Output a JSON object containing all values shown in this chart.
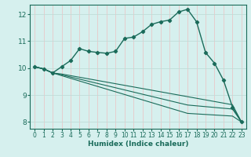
{
  "xlabel": "Humidex (Indice chaleur)",
  "bg_color": "#d6f0ee",
  "grid_color_h": "#c0dcd8",
  "grid_color_v": "#e8c8c8",
  "line_color": "#1a6b5a",
  "xlim": [
    -0.5,
    23.5
  ],
  "ylim": [
    7.75,
    12.35
  ],
  "xticks": [
    0,
    1,
    2,
    3,
    4,
    5,
    6,
    7,
    8,
    9,
    10,
    11,
    12,
    13,
    14,
    15,
    16,
    17,
    18,
    19,
    20,
    21,
    22,
    23
  ],
  "yticks": [
    8,
    9,
    10,
    11,
    12
  ],
  "curve1_x": [
    0,
    1,
    2,
    3,
    4,
    5,
    6,
    7,
    8,
    9,
    10,
    11,
    12,
    13,
    14,
    15,
    16,
    17,
    18,
    19,
    20,
    21,
    22,
    23
  ],
  "curve1_y": [
    10.05,
    9.97,
    9.82,
    10.05,
    10.28,
    10.72,
    10.62,
    10.58,
    10.55,
    10.62,
    11.1,
    11.15,
    11.35,
    11.62,
    11.72,
    11.78,
    12.08,
    12.18,
    11.72,
    10.58,
    10.18,
    9.55,
    8.55,
    8.0
  ],
  "curve2_x": [
    0,
    1,
    2,
    3,
    4,
    5,
    6,
    7,
    8,
    9,
    10,
    11,
    12,
    13,
    14,
    15,
    16,
    17,
    18,
    19,
    20,
    21,
    22,
    23
  ],
  "curve2_y": [
    10.05,
    9.97,
    9.82,
    9.72,
    9.62,
    9.52,
    9.42,
    9.32,
    9.22,
    9.12,
    9.02,
    8.92,
    8.82,
    8.72,
    8.62,
    8.52,
    8.42,
    8.32,
    8.3,
    8.28,
    8.26,
    8.24,
    8.22,
    8.0
  ],
  "curve3_x": [
    0,
    1,
    2,
    3,
    4,
    5,
    6,
    7,
    8,
    9,
    10,
    11,
    12,
    13,
    14,
    15,
    16,
    17,
    18,
    19,
    20,
    21,
    22,
    23
  ],
  "curve3_y": [
    10.05,
    9.97,
    9.82,
    9.75,
    9.67,
    9.59,
    9.51,
    9.43,
    9.35,
    9.27,
    9.19,
    9.11,
    9.03,
    8.95,
    8.87,
    8.79,
    8.71,
    8.63,
    8.6,
    8.57,
    8.54,
    8.51,
    8.48,
    8.0
  ],
  "curve4_x": [
    0,
    1,
    2,
    3,
    4,
    5,
    6,
    7,
    8,
    9,
    10,
    11,
    12,
    13,
    14,
    15,
    16,
    17,
    18,
    19,
    20,
    21,
    22,
    23
  ],
  "curve4_y": [
    10.05,
    9.97,
    9.82,
    9.78,
    9.72,
    9.66,
    9.6,
    9.54,
    9.48,
    9.42,
    9.36,
    9.3,
    9.24,
    9.18,
    9.12,
    9.06,
    9.0,
    8.94,
    8.88,
    8.82,
    8.76,
    8.7,
    8.64,
    8.0
  ]
}
